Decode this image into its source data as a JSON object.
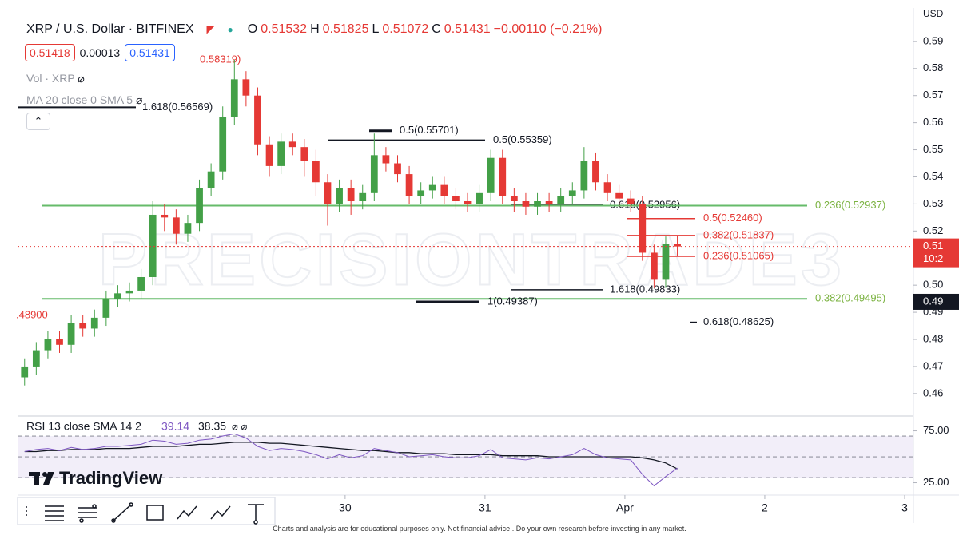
{
  "chart_data": {
    "type": "candlestick",
    "title": "XRP / U.S. Dollar · BITFINEX",
    "ohlc_keys": [
      "O",
      "H",
      "L",
      "C"
    ],
    "change_label": "−0.00110 (−0.21%)",
    "quotes": [
      0.51418,
      0.00013,
      0.51431
    ],
    "indicators": [
      "Vol · XRP",
      "MA 20 close 0 SMA 5"
    ],
    "y_unit": "USD",
    "up_color": "#43a047",
    "down_color": "#e53935",
    "x": [
      -31,
      -29,
      -27,
      -25,
      -23,
      -21,
      -19,
      -17,
      -15,
      -13,
      -11,
      -9,
      -7,
      -5,
      -3,
      -1,
      1,
      3,
      5,
      7,
      9,
      11,
      13,
      15,
      17,
      19,
      21,
      23,
      25,
      27,
      29,
      31,
      33,
      35,
      37,
      39,
      41,
      43,
      45,
      47,
      49,
      51,
      53,
      55,
      57,
      59,
      61,
      63,
      65,
      67,
      69,
      71,
      73,
      75,
      77,
      79,
      81
    ],
    "open": [
      0.466,
      0.47,
      0.476,
      0.48,
      0.478,
      0.486,
      0.484,
      0.488,
      0.495,
      0.497,
      0.498,
      0.503,
      0.526,
      0.525,
      0.519,
      0.523,
      0.536,
      0.542,
      0.562,
      0.576,
      0.57,
      0.552,
      0.544,
      0.553,
      0.551,
      0.546,
      0.538,
      0.53,
      0.536,
      0.531,
      0.534,
      0.548,
      0.545,
      0.541,
      0.533,
      0.535,
      0.537,
      0.533,
      0.531,
      0.53,
      0.534,
      0.547,
      0.533,
      0.531,
      0.529,
      0.531,
      0.53,
      0.533,
      0.535,
      0.546,
      0.538,
      0.534,
      0.532,
      0.53,
      0.512,
      0.502,
      0.51532
    ],
    "high": [
      0.473,
      0.479,
      0.483,
      0.483,
      0.489,
      0.489,
      0.491,
      0.498,
      0.5,
      0.501,
      0.506,
      0.531,
      0.53,
      0.528,
      0.526,
      0.539,
      0.545,
      0.566,
      0.58319,
      0.579,
      0.573,
      0.555,
      0.556,
      0.556,
      0.554,
      0.55,
      0.541,
      0.539,
      0.539,
      0.537,
      0.556,
      0.551,
      0.548,
      0.544,
      0.538,
      0.54,
      0.54,
      0.536,
      0.534,
      0.537,
      0.55,
      0.55,
      0.536,
      0.534,
      0.534,
      0.534,
      0.536,
      0.538,
      0.551,
      0.549,
      0.541,
      0.537,
      0.535,
      0.533,
      0.515,
      0.518,
      0.51825
    ],
    "low": [
      0.463,
      0.467,
      0.473,
      0.475,
      0.475,
      0.481,
      0.481,
      0.485,
      0.492,
      0.494,
      0.495,
      0.5,
      0.52,
      0.515,
      0.516,
      0.52,
      0.533,
      0.539,
      0.559,
      0.566,
      0.548,
      0.54,
      0.541,
      0.548,
      0.54,
      0.533,
      0.522,
      0.527,
      0.526,
      0.528,
      0.531,
      0.542,
      0.538,
      0.53,
      0.53,
      0.532,
      0.53,
      0.528,
      0.527,
      0.527,
      0.531,
      0.53,
      0.527,
      0.526,
      0.526,
      0.527,
      0.527,
      0.53,
      0.532,
      0.535,
      0.531,
      0.529,
      0.527,
      0.509,
      0.499,
      0.499,
      0.51072
    ],
    "close": [
      0.47,
      0.476,
      0.48,
      0.478,
      0.486,
      0.484,
      0.488,
      0.495,
      0.497,
      0.498,
      0.503,
      0.526,
      0.525,
      0.519,
      0.523,
      0.536,
      0.542,
      0.562,
      0.576,
      0.57,
      0.552,
      0.544,
      0.553,
      0.551,
      0.546,
      0.538,
      0.53,
      0.536,
      0.531,
      0.534,
      0.548,
      0.545,
      0.541,
      0.533,
      0.535,
      0.537,
      0.533,
      0.531,
      0.53,
      0.534,
      0.547,
      0.533,
      0.531,
      0.529,
      0.531,
      0.53,
      0.533,
      0.535,
      0.546,
      0.538,
      0.534,
      0.532,
      0.53,
      0.512,
      0.502,
      0.51532,
      0.51431
    ],
    "xlim": [
      -32.2,
      121.1
    ],
    "xticks": [
      {
        "value": 24,
        "label": "30"
      },
      {
        "value": 48,
        "label": "31"
      },
      {
        "value": 72,
        "label": "Apr"
      },
      {
        "value": 96,
        "label": "2"
      },
      {
        "value": 120,
        "label": "3"
      }
    ],
    "ylim": [
      0.452,
      0.5988
    ],
    "yticks": [
      0.59,
      0.58,
      0.57,
      0.56,
      0.55,
      0.54,
      0.53,
      0.52,
      0.51,
      {
        "value": 0.5,
        "label": "0.50"
      },
      0.49,
      0.48,
      0.47,
      0.46
    ],
    "annotations": [
      {
        "label": "1.618(0.56569)",
        "price": 0.56569,
        "color": "#131722"
      },
      {
        "label": "0.5(0.55701)",
        "price": 0.55701,
        "color": "#131722"
      },
      {
        "label": "0.5(0.55359)",
        "price": 0.55359,
        "color": "#131722"
      },
      {
        "label": "0.618(0.52956)",
        "price": 0.52956,
        "color": "#131722"
      },
      {
        "label": "0.236(0.52937)",
        "price": 0.52937,
        "color": "#66bb6a"
      },
      {
        "label": "0.5(0.52460)",
        "price": 0.5246,
        "color": "#e53935"
      },
      {
        "label": "0.382(0.51837)",
        "price": 0.51837,
        "color": "#e53935"
      },
      {
        "label": "0.236(0.51065)",
        "price": 0.51065,
        "color": "#e53935"
      },
      {
        "label": "1.618(0.49833)",
        "price": 0.49833,
        "color": "#131722"
      },
      {
        "label": "0.382(0.49495)",
        "price": 0.49495,
        "color": "#66bb6a"
      },
      {
        "label": "1(0.49387)",
        "price": 0.49387,
        "color": "#131722"
      },
      {
        "label": "0.618(0.48625)",
        "price": 0.48625,
        "color": "#131722"
      },
      {
        "label": ".48900",
        "color": "#e53935"
      },
      {
        "label": "0.58319)",
        "color": "#e53935"
      }
    ],
    "price_tags": [
      {
        "lines": [
          "0.51",
          "10:2"
        ],
        "color": "#e53935"
      },
      {
        "lines": [
          "0.49"
        ],
        "color": "#131722"
      }
    ],
    "watermark": "PRECISIONTRADE3",
    "rsi": {
      "title": "RSI 13 close SMA 14 2",
      "color": "#7e57c2",
      "sma_color": "#131722",
      "values": [
        55,
        57,
        58,
        56,
        59,
        57,
        58,
        60,
        60,
        61,
        62,
        66,
        65,
        62,
        63,
        66,
        67,
        70,
        72,
        68,
        60,
        56,
        58,
        57,
        55,
        52,
        48,
        52,
        49,
        51,
        58,
        56,
        54,
        50,
        51,
        52,
        50,
        49,
        49,
        51,
        57,
        49,
        48,
        47,
        49,
        48,
        50,
        52,
        58,
        52,
        49,
        48,
        47,
        33,
        22,
        31,
        39.14
      ],
      "sma": [
        55,
        55,
        56,
        56,
        57,
        57,
        57,
        58,
        58,
        58,
        59,
        60,
        60,
        60,
        61,
        62,
        62,
        63,
        64,
        64,
        64,
        63,
        63,
        62,
        61,
        60,
        59,
        58,
        57,
        56,
        56,
        55,
        54,
        54,
        53,
        53,
        53,
        52,
        52,
        52,
        52,
        51,
        51,
        51,
        51,
        50,
        50,
        50,
        50,
        50,
        50,
        50,
        50,
        49,
        47,
        44,
        38.35
      ],
      "ylim": [
        13.1,
        88.5
      ],
      "yticks": [
        {
          "value": 75,
          "label": "75.00"
        },
        {
          "value": 25,
          "label": "25.00"
        }
      ],
      "bands": [
        70,
        50,
        30
      ]
    },
    "brand": "TradingView"
  },
  "footer": "Charts and analysis are for educational purposes only. Not financial advice!. Do your own research before investing in any market."
}
